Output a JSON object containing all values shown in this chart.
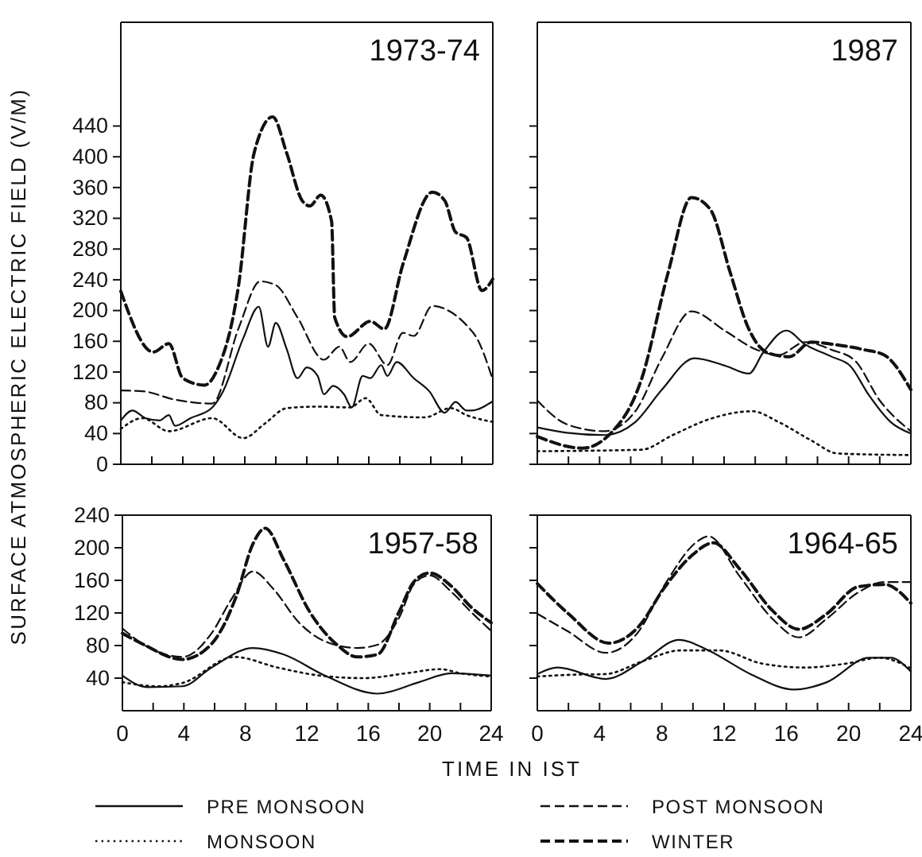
{
  "chart_data": [
    {
      "type": "line",
      "title": "1973-74",
      "ylabel": "SURFACE ATMOSPHERIC ELECTRIC FIELD (V/M)",
      "xlim": [
        0,
        24
      ],
      "ylim": [
        0,
        575
      ],
      "xticks": [
        {
          "value": 0,
          "label": null
        },
        {
          "value": 2,
          "label": null
        },
        {
          "value": 4,
          "label": null
        },
        {
          "value": 6,
          "label": null
        },
        {
          "value": 8,
          "label": null
        },
        {
          "value": 10,
          "label": null
        },
        {
          "value": 12,
          "label": null
        },
        {
          "value": 14,
          "label": null
        },
        {
          "value": 16,
          "label": null
        },
        {
          "value": 18,
          "label": null
        },
        {
          "value": 20,
          "label": null
        },
        {
          "value": 22,
          "label": null
        },
        {
          "value": 24,
          "label": null
        }
      ],
      "yticks": [
        0,
        40,
        80,
        120,
        160,
        200,
        240,
        280,
        320,
        360,
        400,
        440
      ],
      "tick_labels": "y",
      "legend": "bottom",
      "series": [
        {
          "name": "PRE MONSOON",
          "color": "#111111",
          "line_style": "solid",
          "x": [
            0,
            0.75,
            1.6,
            2.5,
            3.1,
            3.5,
            4.5,
            5.9,
            6.6,
            7.9,
            8.9,
            9.5,
            10,
            10.7,
            11.4,
            12,
            12.7,
            13.1,
            13.7,
            14.4,
            14.9,
            15.6,
            16.1,
            16.8,
            17.2,
            17.8,
            18.9,
            19.9,
            20.9,
            21.6,
            22.3,
            22.6,
            24
          ],
          "values": [
            57,
            70,
            60,
            57,
            64,
            50,
            60,
            74,
            95,
            164,
            205,
            153,
            184,
            150,
            112,
            126,
            115,
            91,
            102,
            91,
            74,
            115,
            112,
            129,
            115,
            133,
            112,
            95,
            67,
            81,
            70,
            70,
            82
          ]
        },
        {
          "name": "POST MONSOON",
          "color": "#111111",
          "line_style": "dashed",
          "x": [
            0,
            1.4,
            3.5,
            5.9,
            7.6,
            9,
            10,
            11.4,
            13.1,
            14.1,
            14.8,
            16,
            17.2,
            18.2,
            18.9,
            20.1,
            21.3,
            22.3,
            23,
            24
          ],
          "values": [
            96,
            95,
            84,
            79,
            177,
            238,
            233,
            191,
            136,
            153,
            133,
            157,
            129,
            171,
            167,
            206,
            198,
            181,
            163,
            110
          ]
        },
        {
          "name": "MONSOON",
          "color": "#111111",
          "line_style": "dotted",
          "x": [
            0,
            1.4,
            3.1,
            5.9,
            7.9,
            9.3,
            10.7,
            12.7,
            14.8,
            15.8,
            16.8,
            19.6,
            21.3,
            22.3,
            24
          ],
          "values": [
            46,
            60,
            43,
            60,
            34,
            53,
            73,
            75,
            74,
            86,
            64,
            61,
            73,
            64,
            55
          ]
        },
        {
          "name": "WINTER",
          "color": "#111111",
          "line_style": "dashed",
          "x": [
            0,
            2.1,
            3.1,
            4,
            5.4,
            6.2,
            7.6,
            8.6,
            9.8,
            10.7,
            11.7,
            12.2,
            12.9,
            13.6,
            13.8,
            14.6,
            16.1,
            17,
            18.2,
            20.1,
            20.9,
            21.6,
            22.3,
            23.3,
            24
          ],
          "values": [
            225,
            146,
            157,
            112,
            103,
            122,
            233,
            405,
            452,
            405,
            343,
            336,
            350,
            316,
            191,
            166,
            186,
            176,
            260,
            354,
            343,
            302,
            295,
            226,
            241
          ]
        }
      ]
    },
    {
      "type": "line",
      "title": "1987",
      "xlim": [
        0,
        24
      ],
      "ylim": [
        0,
        575
      ],
      "xticks": [
        {
          "value": 0,
          "label": null
        },
        {
          "value": 2,
          "label": null
        },
        {
          "value": 4,
          "label": null
        },
        {
          "value": 6,
          "label": null
        },
        {
          "value": 8,
          "label": null
        },
        {
          "value": 10,
          "label": null
        },
        {
          "value": 12,
          "label": null
        },
        {
          "value": 14,
          "label": null
        },
        {
          "value": 16,
          "label": null
        },
        {
          "value": 18,
          "label": null
        },
        {
          "value": 20,
          "label": null
        },
        {
          "value": 22,
          "label": null
        },
        {
          "value": 24,
          "label": null
        }
      ],
      "yticks": [
        {
          "value": 0,
          "label": null
        },
        {
          "value": 40,
          "label": null
        },
        {
          "value": 80,
          "label": null
        },
        {
          "value": 120,
          "label": null
        },
        {
          "value": 160,
          "label": null
        },
        {
          "value": 200,
          "label": null
        },
        {
          "value": 240,
          "label": null
        },
        {
          "value": 280,
          "label": null
        },
        {
          "value": 320,
          "label": null
        },
        {
          "value": 360,
          "label": null
        },
        {
          "value": 400,
          "label": null
        },
        {
          "value": 440,
          "label": null
        }
      ],
      "tick_labels": false,
      "series": [
        {
          "color": "#111111",
          "line_style": "solid",
          "x": [
            0,
            1.9,
            4.3,
            6.3,
            8,
            10.1,
            12.1,
            13.6,
            14.5,
            16,
            17.2,
            18.9,
            20.1,
            21.3,
            22.7,
            24
          ],
          "values": [
            48,
            41,
            38,
            55,
            97,
            138,
            128,
            118,
            145,
            174,
            156,
            140,
            128,
            90,
            55,
            40
          ]
        },
        {
          "color": "#111111",
          "line_style": "dashed",
          "x": [
            0,
            1.9,
            4.3,
            6.3,
            8,
            9.9,
            12.1,
            14.1,
            15.5,
            17.2,
            18.9,
            20.4,
            22,
            24
          ],
          "values": [
            83,
            52,
            43,
            69,
            138,
            199,
            173,
            149,
            142,
            159,
            149,
            135,
            83,
            43
          ]
        },
        {
          "color": "#111111",
          "line_style": "dotted",
          "x": [
            0,
            6.7,
            8.7,
            11.1,
            13.8,
            15.5,
            17.6,
            19.3,
            24
          ],
          "values": [
            17,
            19,
            38,
            59,
            69,
            55,
            31,
            14,
            12
          ]
        },
        {
          "color": "#111111",
          "line_style": "dashed",
          "x": [
            0,
            2.9,
            4.6,
            6.7,
            8.4,
            9.9,
            11.1,
            12.4,
            13.5,
            14.8,
            16.2,
            17.6,
            19,
            21,
            22.3,
            24
          ],
          "values": [
            36,
            21,
            38,
            111,
            249,
            347,
            332,
            249,
            180,
            145,
            140,
            159,
            156,
            149,
            142,
            97
          ]
        }
      ]
    },
    {
      "type": "line",
      "title": "1957-58",
      "xlabel": "TIME IN IST",
      "xlim": [
        0,
        24
      ],
      "ylim": [
        0,
        240
      ],
      "xticks": [
        0,
        {
          "value": 2,
          "label": null
        },
        4,
        {
          "value": 6,
          "label": null
        },
        8,
        {
          "value": 10,
          "label": null
        },
        12,
        {
          "value": 14,
          "label": null
        },
        16,
        {
          "value": 18,
          "label": null
        },
        20,
        {
          "value": 22,
          "label": null
        },
        24
      ],
      "yticks": [
        40,
        80,
        120,
        160,
        200,
        240
      ],
      "series": [
        {
          "color": "#111111",
          "line_style": "solid",
          "x": [
            0,
            1.6,
            3.9,
            5.8,
            8.5,
            10.5,
            13.2,
            16.6,
            19.3,
            21.4,
            24
          ],
          "values": [
            43,
            29,
            30,
            53,
            77,
            69,
            43,
            21,
            35,
            46,
            43
          ]
        },
        {
          "color": "#111111",
          "line_style": "dashed",
          "x": [
            0,
            1.3,
            3.9,
            5.8,
            7.1,
            8.5,
            9.8,
            11.5,
            13.2,
            15.3,
            16.6,
            18,
            19,
            20,
            21.4,
            22.7,
            24
          ],
          "values": [
            101,
            82,
            66,
            95,
            137,
            171,
            150,
            108,
            85,
            77,
            81,
            114,
            156,
            166,
            146,
            121,
            98
          ]
        },
        {
          "color": "#111111",
          "line_style": "dotted",
          "x": [
            0,
            2.3,
            3.9,
            7.3,
            10.1,
            12.9,
            15.7,
            18.5,
            20.7,
            22,
            24
          ],
          "values": [
            35,
            30,
            34,
            66,
            53,
            43,
            40,
            46,
            51,
            46,
            42
          ]
        },
        {
          "color": "#111111",
          "line_style": "dashed",
          "x": [
            0,
            1.3,
            3.9,
            5.8,
            7.4,
            8.5,
            9.3,
            10.5,
            12.2,
            13.9,
            15.3,
            16.6,
            18,
            19,
            20,
            21.4,
            22.7,
            24
          ],
          "values": [
            95,
            82,
            63,
            82,
            140,
            205,
            224,
            185,
            121,
            82,
            66,
            69,
            121,
            159,
            169,
            153,
            127,
            108
          ]
        }
      ]
    },
    {
      "type": "line",
      "title": "1964-65",
      "xlim": [
        0,
        24
      ],
      "ylim": [
        0,
        240
      ],
      "xticks": [
        0,
        {
          "value": 2,
          "label": null
        },
        4,
        {
          "value": 6,
          "label": null
        },
        8,
        {
          "value": 10,
          "label": null
        },
        12,
        {
          "value": 14,
          "label": null
        },
        16,
        {
          "value": 18,
          "label": null
        },
        20,
        {
          "value": 22,
          "label": null
        },
        24
      ],
      "yticks": [
        {
          "value": 40,
          "label": null
        },
        {
          "value": 80,
          "label": null
        },
        {
          "value": 120,
          "label": null
        },
        {
          "value": 160,
          "label": null
        },
        {
          "value": 200,
          "label": null
        },
        {
          "value": 240,
          "label": null
        }
      ],
      "tick_labels": "x",
      "series": [
        {
          "color": "#111111",
          "line_style": "solid",
          "x": [
            0,
            1.3,
            4.4,
            6.8,
            9.1,
            11,
            13.7,
            16.5,
            18.6,
            21.3,
            22.7,
            24
          ],
          "values": [
            45,
            53,
            39,
            61,
            87,
            74,
            45,
            26,
            35,
            65,
            65,
            48
          ]
        },
        {
          "color": "#111111",
          "line_style": "dashed",
          "x": [
            0,
            2,
            4.4,
            6.5,
            8.2,
            10.3,
            11,
            13,
            15.1,
            16.8,
            18.6,
            20.6,
            22.3,
            24
          ],
          "values": [
            119,
            97,
            71,
            97,
            155,
            208,
            214,
            165,
            113,
            90,
            113,
            145,
            158,
            158
          ]
        },
        {
          "color": "#111111",
          "line_style": "dotted",
          "x": [
            0,
            2,
            4.4,
            6.8,
            9.2,
            11.7,
            14.4,
            17.2,
            19.9,
            22,
            24
          ],
          "values": [
            42,
            44,
            45,
            61,
            74,
            74,
            58,
            53,
            58,
            65,
            52
          ]
        },
        {
          "color": "#111111",
          "line_style": "dashed",
          "x": [
            0,
            2,
            4.6,
            6.5,
            8.2,
            9.9,
            11.3,
            13,
            15.1,
            16.8,
            18.6,
            20.6,
            22.3,
            24
          ],
          "values": [
            156,
            119,
            83,
            103,
            152,
            190,
            206,
            174,
            123,
            100,
            119,
            152,
            155,
            132
          ]
        }
      ]
    }
  ]
}
